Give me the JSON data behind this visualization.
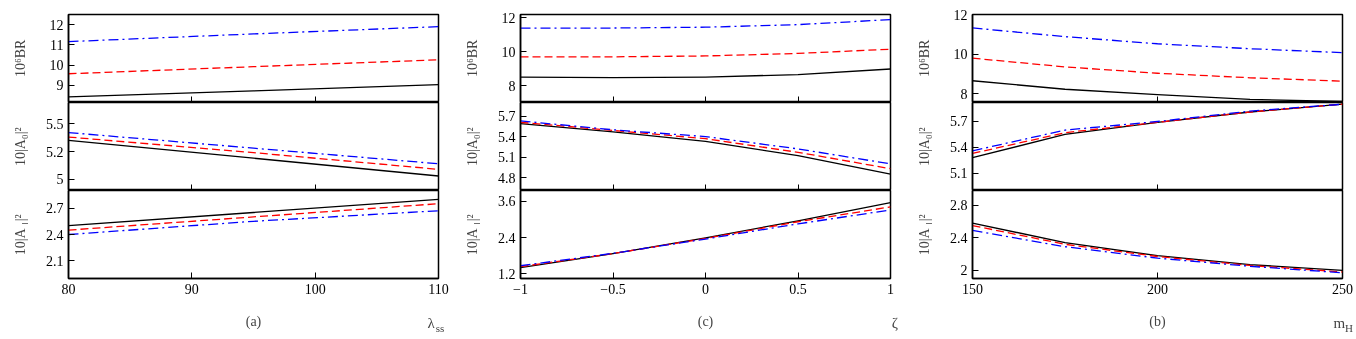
{
  "chart_data": [
    {
      "type": "line",
      "ylabel": "10⁶BR",
      "x": [
        80,
        95,
        110
      ],
      "xlim": [
        80,
        110
      ],
      "xticks": [
        80,
        90,
        100,
        110
      ],
      "ylim": [
        8.15,
        12.5
      ],
      "yticks": [
        9,
        10,
        11,
        12
      ],
      "tick_labels": "y",
      "series": [
        {
          "color": "#000000",
          "line_style": "solid",
          "values": [
            8.43,
            8.72,
            9.03
          ]
        },
        {
          "color": "#ff0000",
          "line_style": "dashed",
          "values": [
            9.57,
            9.92,
            10.26
          ]
        },
        {
          "color": "#0000ff",
          "line_style": "dashdot",
          "values": [
            11.16,
            11.54,
            11.9
          ]
        }
      ]
    },
    {
      "type": "line",
      "ylabel": "10|A₀|²",
      "x": [
        80,
        95,
        110
      ],
      "xlim": [
        80,
        110
      ],
      "xticks": [
        80,
        90,
        100,
        110
      ],
      "ylim": [
        4.9,
        5.69
      ],
      "yticks": [
        5,
        {
          "value": 5.25,
          "label": "5.2"
        },
        5.5
      ],
      "tick_labels": "y",
      "series": [
        {
          "color": "#000000",
          "line_style": "solid",
          "values": [
            5.35,
            5.19,
            5.03
          ]
        },
        {
          "color": "#ff0000",
          "line_style": "dashed",
          "values": [
            5.38,
            5.24,
            5.09
          ]
        },
        {
          "color": "#0000ff",
          "line_style": "dashdot",
          "values": [
            5.42,
            5.28,
            5.14
          ]
        }
      ]
    },
    {
      "type": "line",
      "ylabel": "10|A$_{⊥}$|²",
      "xlabel": "λ$_{ss}$",
      "annotations": [
        "(a)"
      ],
      "x": [
        80,
        95,
        110
      ],
      "xlim": [
        80,
        110
      ],
      "xticks": [
        80,
        90,
        100,
        110
      ],
      "ylim": [
        1.9,
        2.9
      ],
      "yticks": [
        2.1,
        2.4,
        2.7
      ],
      "series": [
        {
          "color": "#000000",
          "line_style": "solid",
          "values": [
            2.5,
            2.65,
            2.8
          ]
        },
        {
          "color": "#ff0000",
          "line_style": "dashed",
          "values": [
            2.45,
            2.6,
            2.75
          ]
        },
        {
          "color": "#0000ff",
          "line_style": "dashdot",
          "values": [
            2.4,
            2.55,
            2.67
          ]
        }
      ]
    },
    {
      "type": "line",
      "ylabel": "10⁶BR",
      "x": [
        -1,
        -0.5,
        0,
        0.5,
        1
      ],
      "xlim": [
        -1,
        1
      ],
      "xticks": [
        -1,
        -0.5,
        0,
        0.5,
        1
      ],
      "ylim": [
        7,
        12.2
      ],
      "yticks": [
        8,
        10,
        12
      ],
      "tick_labels": "y",
      "series": [
        {
          "color": "#000000",
          "line_style": "solid",
          "values": [
            8.5,
            8.47,
            8.5,
            8.65,
            8.98
          ]
        },
        {
          "color": "#ff0000",
          "line_style": "dashed",
          "values": [
            9.7,
            9.7,
            9.75,
            9.9,
            10.15
          ]
        },
        {
          "color": "#0000ff",
          "line_style": "dashdot",
          "values": [
            11.4,
            11.4,
            11.45,
            11.6,
            11.9
          ]
        }
      ]
    },
    {
      "type": "line",
      "ylabel": "10|A₀|²",
      "x": [
        -1,
        -0.5,
        0,
        0.5,
        1
      ],
      "xlim": [
        -1,
        1
      ],
      "xticks": [
        -1,
        -0.5,
        0,
        0.5,
        1
      ],
      "ylim": [
        4.61,
        5.9
      ],
      "yticks": [
        4.8,
        5.1,
        5.4,
        5.7
      ],
      "tick_labels": "y",
      "series": [
        {
          "color": "#000000",
          "line_style": "solid",
          "values": [
            5.59,
            5.47,
            5.33,
            5.12,
            4.85
          ]
        },
        {
          "color": "#ff0000",
          "line_style": "dashed",
          "values": [
            5.61,
            5.49,
            5.37,
            5.17,
            4.93
          ]
        },
        {
          "color": "#0000ff",
          "line_style": "dashdot",
          "values": [
            5.63,
            5.5,
            5.4,
            5.22,
            5.0
          ]
        }
      ]
    },
    {
      "type": "line",
      "ylabel": "10|A$_{⊥}$|²",
      "xlabel": "ζ",
      "annotations": [
        "(c)"
      ],
      "x": [
        -1,
        -0.5,
        0,
        0.5,
        1
      ],
      "xlim": [
        -1,
        1
      ],
      "xticks": [
        -1,
        -0.5,
        0,
        0.5,
        1
      ],
      "ylim": [
        1.05,
        3.95
      ],
      "yticks": [
        1.2,
        2.4,
        3.6
      ],
      "series": [
        {
          "color": "#000000",
          "line_style": "solid",
          "values": [
            1.41,
            1.87,
            2.39,
            2.95,
            3.55
          ]
        },
        {
          "color": "#ff0000",
          "line_style": "dashed",
          "values": [
            1.44,
            1.87,
            2.37,
            2.92,
            3.41
          ]
        },
        {
          "color": "#0000ff",
          "line_style": "dashdot",
          "values": [
            1.47,
            1.88,
            2.35,
            2.85,
            3.31
          ]
        }
      ]
    },
    {
      "type": "line",
      "ylabel": "10⁶BR",
      "x": [
        150,
        175,
        200,
        225,
        250
      ],
      "xlim": [
        150,
        250
      ],
      "xticks": [
        150,
        200,
        250
      ],
      "ylim": [
        7.55,
        12
      ],
      "yticks": [
        8,
        10,
        12
      ],
      "tick_labels": "y",
      "series": [
        {
          "color": "#000000",
          "line_style": "solid",
          "values": [
            8.65,
            8.22,
            7.95,
            7.71,
            7.6
          ]
        },
        {
          "color": "#ff0000",
          "line_style": "dashed",
          "values": [
            9.79,
            9.35,
            9.03,
            8.8,
            8.63
          ]
        },
        {
          "color": "#0000ff",
          "line_style": "dashdot",
          "values": [
            11.32,
            10.88,
            10.52,
            10.27,
            10.07
          ]
        }
      ]
    },
    {
      "type": "line",
      "ylabel": "10|A₀|²",
      "x": [
        150,
        175,
        200,
        225,
        250
      ],
      "xlim": [
        150,
        250
      ],
      "xticks": [
        150,
        200,
        250
      ],
      "ylim": [
        4.9,
        5.92
      ],
      "yticks": [
        5.1,
        5.4,
        5.7
      ],
      "tick_labels": "y",
      "series": [
        {
          "color": "#000000",
          "line_style": "solid",
          "values": [
            5.28,
            5.55,
            5.69,
            5.81,
            5.9
          ]
        },
        {
          "color": "#ff0000",
          "line_style": "dashed",
          "values": [
            5.33,
            5.57,
            5.69,
            5.81,
            5.9
          ]
        },
        {
          "color": "#0000ff",
          "line_style": "dashdot",
          "values": [
            5.36,
            5.6,
            5.7,
            5.82,
            5.9
          ]
        }
      ]
    },
    {
      "type": "line",
      "ylabel": "10|A$_{⊥}$|²",
      "xlabel": "m$_{H}$",
      "annotations": [
        "(b)"
      ],
      "x": [
        150,
        175,
        200,
        225,
        250
      ],
      "xlim": [
        150,
        250
      ],
      "xticks": [
        150,
        200,
        250
      ],
      "ylim": [
        1.9,
        2.98
      ],
      "yticks": [
        2,
        2.4,
        2.8
      ],
      "series": [
        {
          "color": "#000000",
          "line_style": "solid",
          "values": [
            2.58,
            2.34,
            2.18,
            2.07,
            2.0
          ]
        },
        {
          "color": "#ff0000",
          "line_style": "dashed",
          "values": [
            2.55,
            2.32,
            2.17,
            2.06,
            1.98
          ]
        },
        {
          "color": "#0000ff",
          "line_style": "dashdot",
          "values": [
            2.49,
            2.29,
            2.15,
            2.05,
            1.97
          ]
        }
      ]
    }
  ]
}
